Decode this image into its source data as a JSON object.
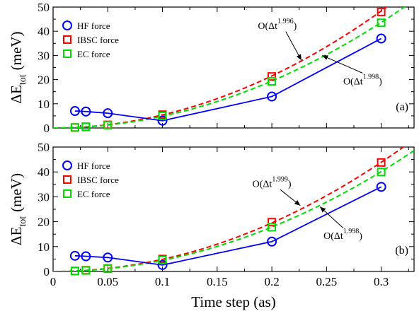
{
  "chart_data": {
    "type": "line",
    "xlabel": "Time step (as)",
    "xlim": [
      0,
      0.33
    ],
    "xticks": [
      "0",
      "0.05",
      "0.1",
      "0.15",
      "0.2",
      "0.25",
      "0.3"
    ],
    "panels": [
      {
        "panel_label": "(a)",
        "ylabel": "ΔE",
        "ylabel_sub": "tot",
        "ylabel_unit": "(meV)",
        "ylim": [
          0,
          50
        ],
        "yticks": [
          "0",
          "10",
          "20",
          "30",
          "40",
          "50"
        ],
        "series": [
          {
            "name": "HF force",
            "color": "#0000ff",
            "marker": "circle",
            "connect": "solid",
            "x": [
              0.02,
              0.03,
              0.05,
              0.1,
              0.2,
              0.3
            ],
            "y": [
              7.0,
              6.8,
              6.1,
              3.0,
              13.0,
              37.0
            ]
          },
          {
            "name": "IBSC force",
            "color": "#ff0000",
            "marker": "square",
            "connect": "none",
            "x": [
              0.02,
              0.03,
              0.05,
              0.1,
              0.2,
              0.3
            ],
            "y": [
              0.2,
              0.5,
              1.3,
              5.5,
              21.3,
              48.0
            ]
          },
          {
            "name": "EC force",
            "color": "#00dd00",
            "marker": "square",
            "connect": "none",
            "x": [
              0.02,
              0.03,
              0.05,
              0.1,
              0.2,
              0.3
            ],
            "y": [
              0.2,
              0.4,
              1.2,
              5.0,
              19.3,
              43.5
            ]
          }
        ],
        "fits": [
          {
            "color": "#ff0000",
            "coef": 535,
            "exponent": 1.996
          },
          {
            "color": "#00dd00",
            "coef": 484,
            "exponent": 1.998
          }
        ],
        "annotations": [
          {
            "base": "O(Δt",
            "exp": "1.996",
            "close": ")",
            "text_x": 0.205,
            "text_y": 41,
            "arrow_to": [
              0.227,
              28
            ]
          },
          {
            "base": "O(Δt",
            "exp": "1.998",
            "close": ")",
            "text_x": 0.283,
            "text_y": 18,
            "arrow_to": [
              0.246,
              30
            ]
          }
        ]
      },
      {
        "panel_label": "(b)",
        "ylabel": "ΔE",
        "ylabel_sub": "tot",
        "ylabel_unit": "(meV)",
        "ylim": [
          0,
          50
        ],
        "yticks": [
          "0",
          "10",
          "20",
          "30",
          "40",
          "50"
        ],
        "series": [
          {
            "name": "HF force",
            "color": "#0000ff",
            "marker": "circle",
            "connect": "solid",
            "x": [
              0.02,
              0.03,
              0.05,
              0.1,
              0.2,
              0.3
            ],
            "y": [
              6.3,
              6.1,
              5.6,
              2.6,
              12.0,
              34.0
            ]
          },
          {
            "name": "IBSC force",
            "color": "#ff0000",
            "marker": "square",
            "connect": "none",
            "x": [
              0.02,
              0.03,
              0.05,
              0.1,
              0.2,
              0.3
            ],
            "y": [
              0.2,
              0.5,
              1.2,
              5.0,
              19.8,
              43.8
            ]
          },
          {
            "name": "EC force",
            "color": "#00dd00",
            "marker": "square",
            "connect": "none",
            "x": [
              0.02,
              0.03,
              0.05,
              0.1,
              0.2,
              0.3
            ],
            "y": [
              0.2,
              0.4,
              1.1,
              4.6,
              17.8,
              40.0
            ]
          }
        ],
        "fits": [
          {
            "color": "#ff0000",
            "coef": 487,
            "exponent": 1.999
          },
          {
            "color": "#00dd00",
            "coef": 445,
            "exponent": 1.998
          }
        ],
        "annotations": [
          {
            "base": "O(Δt",
            "exp": "1.999",
            "close": ")",
            "text_x": 0.2,
            "text_y": 34,
            "arrow_to": [
              0.226,
              26.5
            ]
          },
          {
            "base": "O(Δt",
            "exp": "1.998",
            "close": ")",
            "text_x": 0.265,
            "text_y": 13,
            "arrow_to": [
              0.244,
              26
            ]
          }
        ]
      }
    ]
  }
}
